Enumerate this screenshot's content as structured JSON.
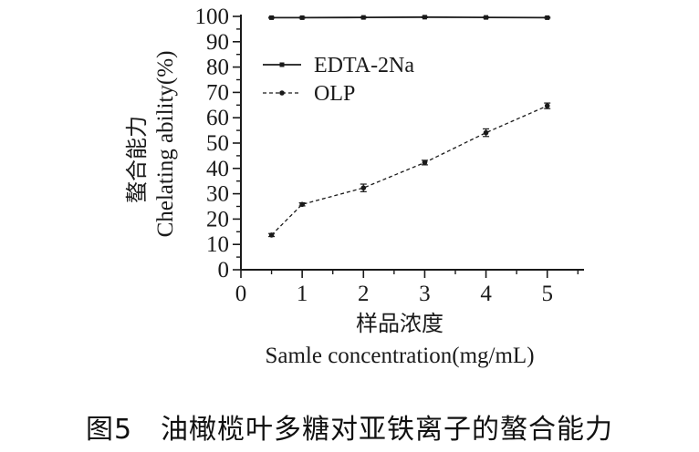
{
  "chart_data": {
    "type": "line",
    "x": [
      0.5,
      1,
      2,
      3,
      4,
      5
    ],
    "xlim": [
      0,
      5.6
    ],
    "ylim": [
      0,
      100
    ],
    "x_ticks": [
      "0",
      "1",
      "2",
      "3",
      "4",
      "5"
    ],
    "y_ticks": [
      "0",
      "10",
      "20",
      "30",
      "40",
      "50",
      "60",
      "70",
      "80",
      "90",
      "100"
    ],
    "xlabel_cn": "样品浓度",
    "xlabel": "Samle concentration(mg/mL)",
    "ylabel_cn": "螯合能力",
    "ylabel": "Chelating ability(%)",
    "legend_position": "top-left",
    "series": [
      {
        "name": "EDTA-2Na",
        "style": "solid",
        "values": [
          99.5,
          99.5,
          99.6,
          99.7,
          99.6,
          99.5
        ],
        "errors": [
          0.2,
          0.2,
          0.2,
          0.2,
          0.2,
          0.2
        ]
      },
      {
        "name": "OLP",
        "style": "dashed",
        "values": [
          13.7,
          25.8,
          32.3,
          42.3,
          54.1,
          64.7
        ],
        "errors": [
          0.6,
          0.6,
          1.5,
          0.9,
          1.5,
          1.1
        ]
      }
    ],
    "line_color": "#1a1a1a"
  },
  "caption": "图5　油橄榄叶多糖对亚铁离子的螯合能力"
}
